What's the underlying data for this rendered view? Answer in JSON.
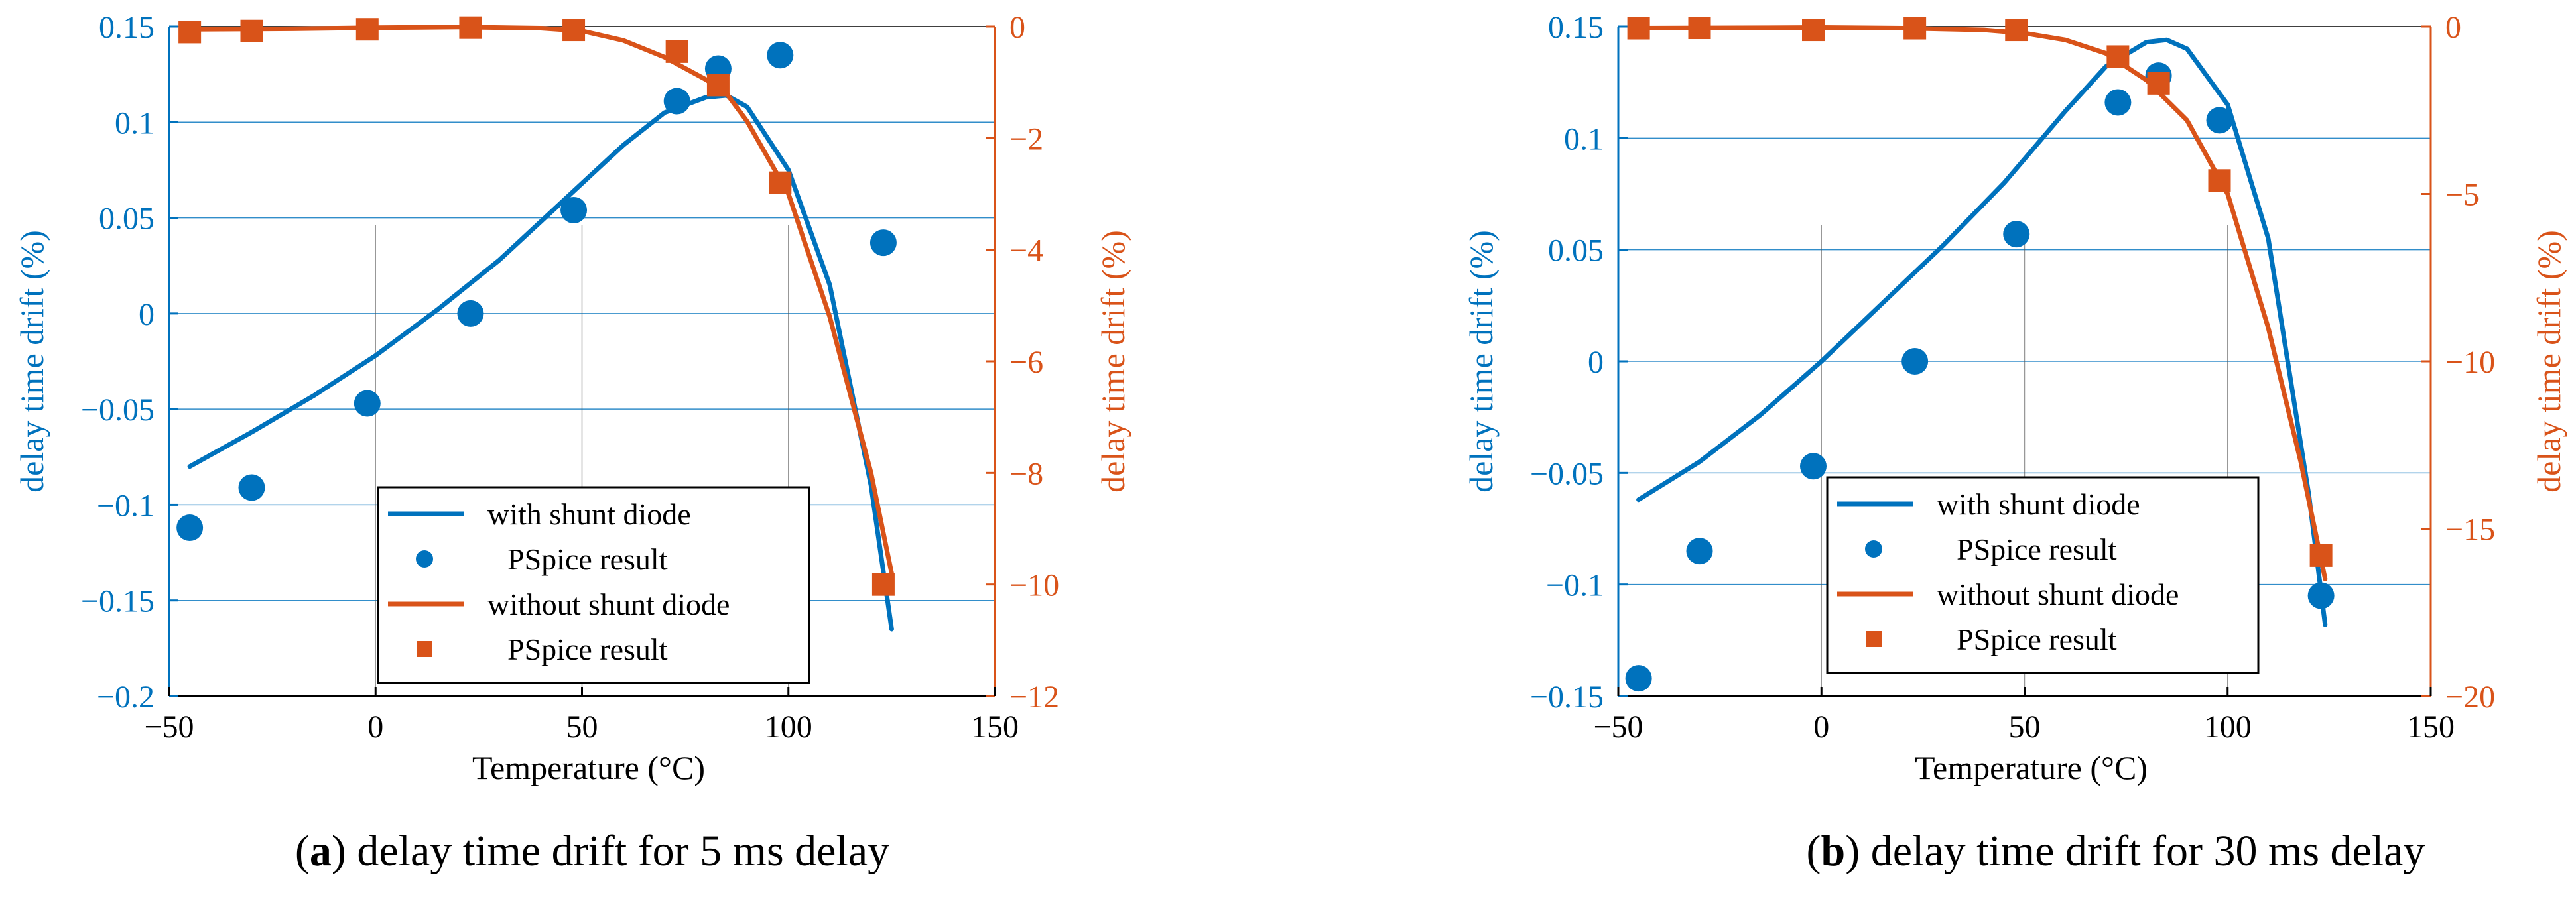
{
  "colors": {
    "left_axis": "#0072BD",
    "right_axis": "#D95319",
    "text": "#000000"
  },
  "chart_data": [
    {
      "type": "line",
      "caption_label": "a",
      "caption_text": "delay time drift for 5 ms delay",
      "xlabel": "Temperature (°C)",
      "ylabel": "delay time drift (%)",
      "y2label": "delay time drift (%)",
      "xlim": [
        -50,
        150
      ],
      "ylim": [
        -0.2,
        0.15
      ],
      "y2lim": [
        -12,
        0
      ],
      "xticks": [
        "−50",
        "0",
        "50",
        "100",
        "150"
      ],
      "yticks": [
        "−0.2",
        "−0.15",
        "−0.1",
        "−0.05",
        "0",
        "0.05",
        "0.1",
        "0.15"
      ],
      "y2ticks": [
        "−12",
        "−10",
        "−8",
        "−6",
        "−4",
        "−2",
        "0"
      ],
      "legend": [
        "with shunt diode",
        "PSpice result",
        "without shunt diode",
        "PSpice result"
      ],
      "series": [
        {
          "name": "with shunt diode",
          "axis": "left",
          "style": "line",
          "x": [
            -45,
            -30,
            -15,
            0,
            15,
            30,
            45,
            60,
            70,
            80,
            85,
            90,
            100,
            110,
            120,
            125
          ],
          "y": [
            -0.08,
            -0.062,
            -0.043,
            -0.022,
            0.002,
            0.028,
            0.058,
            0.088,
            0.105,
            0.113,
            0.114,
            0.108,
            0.075,
            0.015,
            -0.09,
            -0.165
          ]
        },
        {
          "name": "PSpice result",
          "axis": "left",
          "style": "circle",
          "x": [
            -45,
            -30,
            -2,
            23,
            48,
            73,
            83,
            98,
            123
          ],
          "y": [
            -0.112,
            -0.091,
            -0.047,
            0.0,
            0.054,
            0.111,
            0.128,
            0.135,
            0.037
          ]
        },
        {
          "name": "without shunt diode",
          "axis": "right",
          "style": "line",
          "x": [
            -45,
            -20,
            0,
            20,
            40,
            50,
            60,
            70,
            80,
            85,
            90,
            100,
            110,
            120,
            125
          ],
          "y": [
            -0.05,
            -0.04,
            -0.02,
            -0.01,
            -0.03,
            -0.08,
            -0.25,
            -0.55,
            -0.95,
            -1.2,
            -1.7,
            -3.0,
            -5.2,
            -8.0,
            -9.8
          ]
        },
        {
          "name": "PSpice result",
          "axis": "right",
          "style": "square",
          "x": [
            -45,
            -30,
            -2,
            23,
            48,
            73,
            83,
            98,
            123
          ],
          "y": [
            -0.1,
            -0.08,
            -0.05,
            -0.02,
            -0.06,
            -0.45,
            -1.05,
            -2.8,
            -10.0
          ]
        }
      ]
    },
    {
      "type": "line",
      "caption_label": "b",
      "caption_text": "delay time drift for 30 ms delay",
      "xlabel": "Temperature (°C)",
      "ylabel": "delay time drift (%)",
      "y2label": "delay time drift (%)",
      "xlim": [
        -50,
        150
      ],
      "ylim": [
        -0.15,
        0.15
      ],
      "y2lim": [
        -20,
        0
      ],
      "xticks": [
        "−50",
        "0",
        "50",
        "100",
        "150"
      ],
      "yticks": [
        "−0.15",
        "−0.1",
        "−0.05",
        "0",
        "0.05",
        "0.1",
        "0.15"
      ],
      "y2ticks": [
        "−20",
        "−15",
        "−10",
        "−5",
        "0"
      ],
      "legend": [
        "with shunt diode",
        "PSpice result",
        "without shunt diode",
        "PSpice result"
      ],
      "series": [
        {
          "name": "with shunt diode",
          "axis": "left",
          "style": "line",
          "x": [
            -45,
            -30,
            -15,
            0,
            15,
            30,
            45,
            60,
            70,
            80,
            85,
            90,
            100,
            110,
            120,
            124
          ],
          "y": [
            -0.062,
            -0.045,
            -0.024,
            0.0,
            0.026,
            0.052,
            0.08,
            0.112,
            0.132,
            0.143,
            0.144,
            0.14,
            0.115,
            0.055,
            -0.06,
            -0.118
          ]
        },
        {
          "name": "PSpice result",
          "axis": "left",
          "style": "circle",
          "x": [
            -45,
            -30,
            -2,
            23,
            48,
            73,
            83,
            98,
            123
          ],
          "y": [
            -0.142,
            -0.085,
            -0.047,
            0.0,
            0.057,
            0.116,
            0.128,
            0.108,
            -0.105
          ]
        },
        {
          "name": "without shunt diode",
          "axis": "right",
          "style": "line",
          "x": [
            -45,
            -20,
            0,
            20,
            40,
            50,
            60,
            70,
            80,
            90,
            100,
            110,
            118,
            124
          ],
          "y": [
            -0.05,
            -0.04,
            -0.03,
            -0.05,
            -0.1,
            -0.2,
            -0.4,
            -0.8,
            -1.6,
            -2.8,
            -5.0,
            -9.0,
            -13.0,
            -16.5
          ]
        },
        {
          "name": "PSpice result",
          "axis": "right",
          "style": "square",
          "x": [
            -45,
            -30,
            -2,
            23,
            48,
            73,
            83,
            98,
            123
          ],
          "y": [
            -0.05,
            -0.04,
            -0.1,
            -0.05,
            -0.1,
            -0.9,
            -1.7,
            -4.6,
            -15.8
          ]
        }
      ]
    }
  ]
}
